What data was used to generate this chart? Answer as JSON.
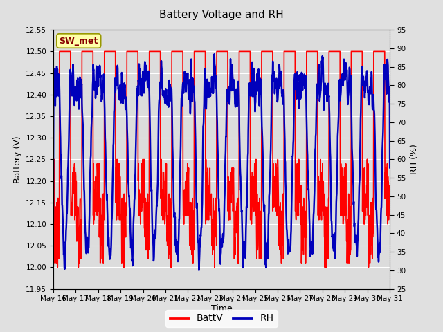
{
  "title": "Battery Voltage and RH",
  "xlabel": "Time",
  "ylabel_left": "Battery (V)",
  "ylabel_right": "RH (%)",
  "station_label": "SW_met",
  "ylim_left": [
    11.95,
    12.55
  ],
  "ylim_right": [
    25,
    95
  ],
  "yticks_left": [
    11.95,
    12.0,
    12.05,
    12.1,
    12.15,
    12.2,
    12.25,
    12.3,
    12.35,
    12.4,
    12.45,
    12.5,
    12.55
  ],
  "yticks_right": [
    25,
    30,
    35,
    40,
    45,
    50,
    55,
    60,
    65,
    70,
    75,
    80,
    85,
    90,
    95
  ],
  "xtick_labels": [
    "May 16",
    "May 17",
    "May 18",
    "May 19",
    "May 20",
    "May 21",
    "May 22",
    "May 23",
    "May 24",
    "May 25",
    "May 26",
    "May 27",
    "May 28",
    "May 29",
    "May 30",
    "May 31"
  ],
  "battv_color": "#FF0000",
  "rh_color": "#0000BB",
  "bg_color": "#E0E0E0",
  "plot_bg_color": "#DCDCDC",
  "legend_battv": "BattV",
  "legend_rh": "RH",
  "station_box_color": "#FFFFAA",
  "station_box_edge": "#999900",
  "grid_color": "#FFFFFF",
  "linewidth_battv": 1.2,
  "linewidth_rh": 1.8,
  "n_days": 15,
  "points_per_day": 96
}
